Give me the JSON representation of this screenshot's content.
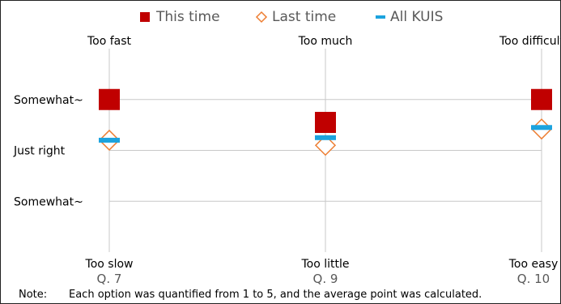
{
  "chart_data": {
    "type": "scatter",
    "categories": [
      "Q. 7",
      "Q. 9",
      "Q. 10"
    ],
    "top_labels": [
      "Too fast",
      "Too much",
      "Too difficult"
    ],
    "bottom_labels": [
      "Too slow",
      "Too little",
      "Too easy"
    ],
    "y_labels": [
      {
        "value": 4,
        "label": "Somewhat~"
      },
      {
        "value": 3,
        "label": "Just right"
      },
      {
        "value": 2,
        "label": "Somewhat~"
      }
    ],
    "ylim": [
      1,
      5
    ],
    "grid": true,
    "legend_position": "top",
    "series": [
      {
        "name": "This time",
        "marker": "square",
        "color": "#C00000",
        "values": [
          4.0,
          3.55,
          4.0
        ]
      },
      {
        "name": "Last time",
        "marker": "diamond",
        "color": "#ED7D31",
        "values": [
          3.2,
          3.1,
          3.42
        ]
      },
      {
        "name": "All KUIS",
        "marker": "dash",
        "color": "#1CA3DE",
        "values": [
          3.2,
          3.25,
          3.45
        ]
      }
    ],
    "note_label": "Note:",
    "note_text": "Each option was quantified from 1 to 5, and the average point was calculated."
  }
}
